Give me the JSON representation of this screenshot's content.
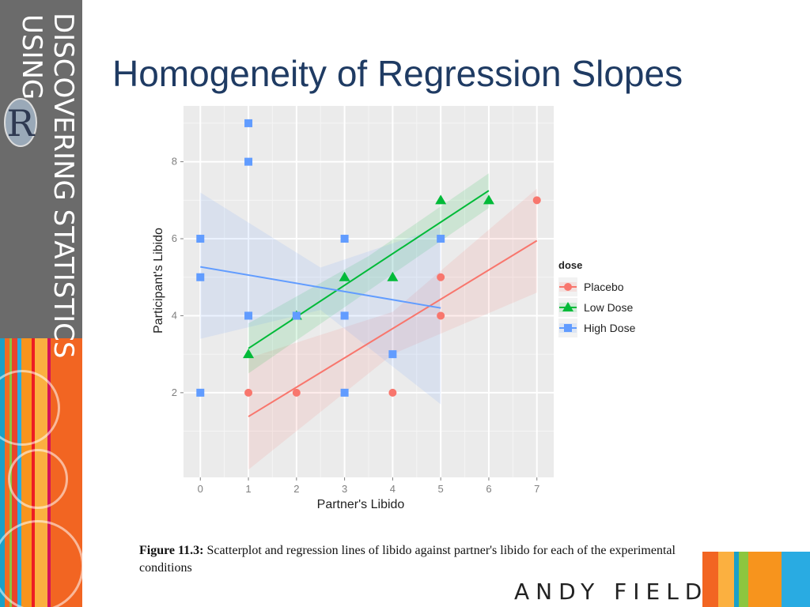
{
  "brand": {
    "line1": "DISCOVERING STATISTICS",
    "line2": "USING",
    "logo_letter": "R",
    "author": "ANDY FIELD",
    "colors": {
      "strip": "#6b6b6b",
      "title": "#1f3b63"
    }
  },
  "slide": {
    "title": "Homogeneity of Regression Slopes"
  },
  "caption": {
    "label": "Figure 11.3:",
    "text": " Scatterplot and regression lines of libido against partner's libido for each of the experimental conditions"
  },
  "chart_data": {
    "type": "scatter",
    "xlabel": "Partner's Libido",
    "ylabel": "Participant's Libido",
    "xlim": [
      -0.35,
      7.35
    ],
    "ylim": [
      -0.2,
      9.45
    ],
    "xticks": [
      0,
      1,
      2,
      3,
      4,
      5,
      6,
      7
    ],
    "yticks": [
      2,
      4,
      6,
      8
    ],
    "grid": true,
    "panel_bg": "#ebebeb",
    "legend": {
      "title": "dose",
      "position": "right"
    },
    "series": [
      {
        "name": "Placebo",
        "color": "#f8766d",
        "marker": "circle",
        "points": [
          [
            1,
            2
          ],
          [
            2,
            2
          ],
          [
            4,
            2
          ],
          [
            5,
            4
          ],
          [
            5,
            5
          ],
          [
            7,
            7
          ]
        ],
        "fit": {
          "x": [
            1,
            7
          ],
          "y": [
            1.38,
            5.95
          ]
        },
        "band": {
          "x": [
            1,
            4,
            7
          ],
          "upper": [
            2.9,
            4.1,
            7.3
          ],
          "lower": [
            0.0,
            3.0,
            4.6
          ]
        }
      },
      {
        "name": "Low Dose",
        "color": "#00ba38",
        "marker": "triangle",
        "points": [
          [
            1,
            3
          ],
          [
            2,
            4
          ],
          [
            3,
            5
          ],
          [
            4,
            5
          ],
          [
            5,
            7
          ],
          [
            6,
            7
          ]
        ],
        "fit": {
          "x": [
            1,
            6
          ],
          "y": [
            3.15,
            7.25
          ]
        },
        "band": {
          "x": [
            1,
            3.5,
            6
          ],
          "upper": [
            3.8,
            5.55,
            7.7
          ],
          "lower": [
            2.5,
            4.65,
            6.8
          ]
        }
      },
      {
        "name": "High Dose",
        "color": "#619cff",
        "marker": "square",
        "points": [
          [
            0,
            2
          ],
          [
            0,
            5
          ],
          [
            0,
            6
          ],
          [
            1,
            4
          ],
          [
            1,
            8
          ],
          [
            1,
            9
          ],
          [
            2,
            4
          ],
          [
            3,
            2
          ],
          [
            3,
            4
          ],
          [
            3,
            6
          ],
          [
            4,
            3
          ],
          [
            5,
            6
          ]
        ],
        "fit": {
          "x": [
            0,
            5
          ],
          "y": [
            5.27,
            4.2
          ]
        },
        "band": {
          "x": [
            0,
            2.5,
            5
          ],
          "upper": [
            7.2,
            5.25,
            6.3
          ],
          "lower": [
            3.4,
            4.15,
            1.7
          ]
        }
      }
    ]
  }
}
